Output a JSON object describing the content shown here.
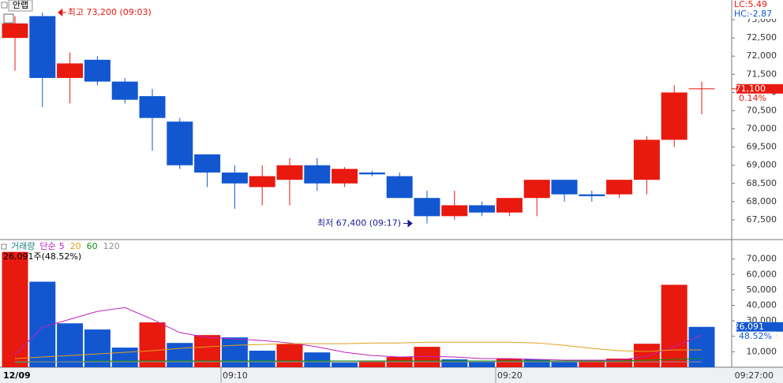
{
  "header": {
    "stock_name": "안랩"
  },
  "chart_data": [
    {
      "type": "candlestick",
      "up_color": "#e8190e",
      "down_color": "#1257d0",
      "open": [
        72500,
        73100,
        71400,
        71900,
        71300,
        70900,
        70200,
        69300,
        68800,
        68400,
        68600,
        69000,
        68500,
        68800,
        68700,
        68100,
        67600,
        67900,
        67700,
        68100,
        68600,
        68200,
        68200,
        68600,
        69700,
        71100
      ],
      "high": [
        73100,
        73200,
        72100,
        72000,
        71400,
        71100,
        70300,
        69300,
        69000,
        69000,
        69200,
        69200,
        68950,
        68850,
        68800,
        68300,
        68300,
        68000,
        68100,
        68600,
        68600,
        68300,
        68600,
        69800,
        71200,
        71300
      ],
      "low": [
        71600,
        70600,
        70700,
        71200,
        70700,
        69400,
        68900,
        68400,
        67800,
        67900,
        67900,
        68300,
        68400,
        68700,
        68100,
        67400,
        67500,
        67600,
        67600,
        67600,
        68000,
        68000,
        68100,
        68200,
        69500,
        70400
      ],
      "close": [
        72900,
        71400,
        71800,
        71300,
        70800,
        70300,
        69000,
        68800,
        68500,
        68700,
        69000,
        68500,
        68900,
        68750,
        68100,
        67600,
        67900,
        67700,
        68100,
        68600,
        68200,
        68150,
        68600,
        69700,
        71000,
        71100
      ],
      "ylim": [
        67000,
        73500
      ],
      "yticks": [
        {
          "value": 67500,
          "label": "67,500"
        },
        {
          "value": 68000,
          "label": "68,000"
        },
        {
          "value": 68500,
          "label": "68,500"
        },
        {
          "value": 69000,
          "label": "69,000"
        },
        {
          "value": 69500,
          "label": "69,500"
        },
        {
          "value": 70000,
          "label": "70,000"
        },
        {
          "value": 70500,
          "label": "70,500"
        },
        {
          "value": 71000,
          "label": "71,000"
        },
        {
          "value": 71500,
          "label": "71,500"
        },
        {
          "value": 72000,
          "label": "72,000"
        },
        {
          "value": 72500,
          "label": "72,500"
        },
        {
          "value": 73000,
          "label": "73,000"
        }
      ],
      "high_annotation": "최고 73,200 (09:03)",
      "low_annotation": "최저 67,400 (09:17)",
      "lc_label": "LC:5.49",
      "hc_label": "HC:-2.87",
      "last_price": {
        "value": 71100,
        "label": "71,100"
      },
      "last_change": "0.14%"
    },
    {
      "type": "bar",
      "title": "거래량",
      "ma_label": "단순",
      "up_color": "#e8190e",
      "down_color": "#1257d0",
      "values": [
        74600,
        55300,
        28400,
        24400,
        12700,
        29000,
        15700,
        20800,
        19300,
        10700,
        15200,
        9600,
        3000,
        4000,
        6600,
        13200,
        5100,
        3600,
        5600,
        5100,
        3600,
        4100,
        5600,
        15200,
        53300,
        26091
      ],
      "series": [
        {
          "name": "5",
          "color": "#c020c0",
          "values": [
            8100,
            25900,
            31000,
            36100,
            38600,
            31000,
            22400,
            19300,
            18300,
            17300,
            15700,
            13200,
            9700,
            7600,
            6600,
            7100,
            6600,
            5600,
            5600,
            5100,
            4600,
            4600,
            4600,
            7100,
            13200,
            20800
          ]
        },
        {
          "name": "20",
          "color": "#e0a020",
          "values": [
            5600,
            6600,
            7600,
            8600,
            9600,
            10700,
            12200,
            13200,
            14200,
            14700,
            15200,
            15200,
            15200,
            15700,
            15700,
            16200,
            16200,
            16200,
            16200,
            15700,
            14200,
            12200,
            10700,
            10200,
            11200,
            11200
          ]
        },
        {
          "name": "60",
          "color": "#109010",
          "values": [
            3000,
            3500,
            3500,
            4000,
            4000,
            4100,
            4100,
            4100,
            4100,
            4100,
            4100,
            4100,
            4100,
            4100,
            4100,
            4100,
            4100,
            4100,
            4100,
            4100,
            4100,
            4100,
            4100,
            4600,
            5100,
            5600
          ]
        },
        {
          "name": "120",
          "color": "#909090",
          "values": [
            3500,
            3500,
            3500,
            3500,
            3500,
            3500,
            3500,
            3500,
            3500,
            3500,
            3500,
            3500,
            3500,
            3500,
            3500,
            3500,
            3500,
            3500,
            3500,
            3500,
            3500,
            3500,
            3500,
            3500,
            3500,
            3500
          ]
        }
      ],
      "ylim": [
        0,
        80000
      ],
      "yticks": [
        {
          "value": 10000,
          "label": "10,000"
        },
        {
          "value": 20000,
          "label": "20,000"
        },
        {
          "value": 30000,
          "label": "30,000"
        },
        {
          "value": 40000,
          "label": "40,000"
        },
        {
          "value": 50000,
          "label": "50,000"
        },
        {
          "value": 60000,
          "label": "60,000"
        },
        {
          "value": 70000,
          "label": "70,000"
        }
      ],
      "info_label": "26,091주(48.52%)",
      "last_volume": {
        "value": 26091,
        "label": "26,091"
      },
      "last_ratio": "48.52%",
      "categories": [
        null,
        null,
        null,
        null,
        null,
        null,
        null,
        null,
        "09:10",
        null,
        null,
        null,
        null,
        null,
        null,
        null,
        null,
        null,
        "09:20",
        null,
        null,
        null,
        null,
        null,
        null,
        null
      ],
      "date_label": "12/09",
      "cursor_time": "09:27:00"
    }
  ]
}
